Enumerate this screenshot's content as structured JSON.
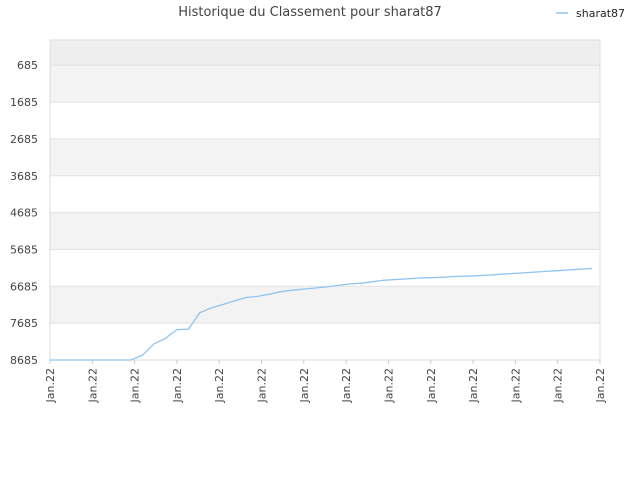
{
  "chart_data": {
    "type": "line",
    "title": "Historique du Classement pour sharat87",
    "xlabel": "",
    "ylabel": "",
    "y_inverted": true,
    "ylim": [
      8685,
      0
    ],
    "y_ticks": [
      685,
      1685,
      2685,
      3685,
      4685,
      5685,
      6685,
      7685,
      8685
    ],
    "x_tick_labels": [
      "Jan.22",
      "Jan.22",
      "Jan.22",
      "Jan.22",
      "Jan.22",
      "Jan.22",
      "Jan.22",
      "Jan.22",
      "Jan.22",
      "Jan.22",
      "Jan.22",
      "Jan.22",
      "Jan.22",
      "Jan.22"
    ],
    "legend": {
      "position": "top-right",
      "entries": [
        "sharat87"
      ]
    },
    "grid": true,
    "series": [
      {
        "name": "sharat87",
        "color": "#90c4f0",
        "values": [
          8685,
          8685,
          8685,
          8685,
          8685,
          8685,
          8685,
          8685,
          8560,
          8250,
          8100,
          7860,
          7850,
          7400,
          7270,
          7180,
          7080,
          6990,
          6960,
          6900,
          6830,
          6790,
          6760,
          6730,
          6700,
          6660,
          6620,
          6600,
          6560,
          6520,
          6500,
          6480,
          6460,
          6450,
          6440,
          6420,
          6410,
          6400,
          6380,
          6360,
          6340,
          6320,
          6300,
          6280,
          6260,
          6240,
          6220,
          6200
        ]
      }
    ]
  }
}
